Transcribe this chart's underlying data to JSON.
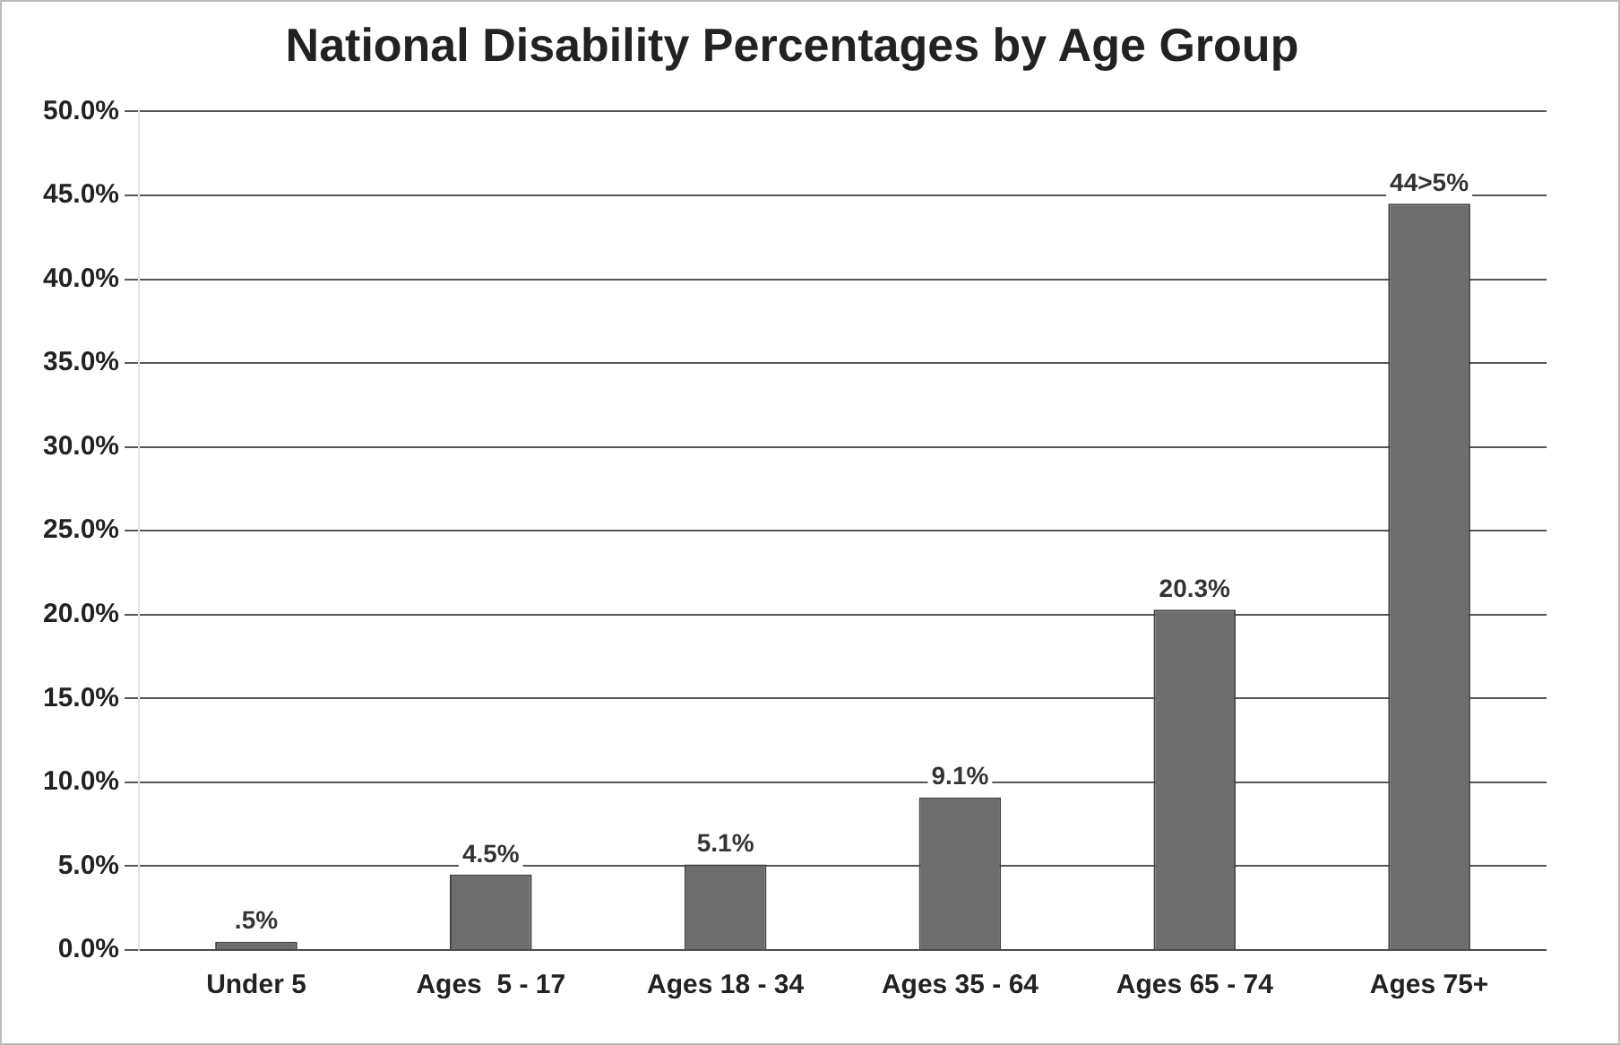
{
  "chart_data": {
    "type": "bar",
    "title": "National Disability Percentages by Age Group",
    "categories": [
      "Under 5",
      "Ages  5 - 17",
      "Ages 18 - 34",
      "Ages 35 - 64",
      "Ages 65 - 74",
      "Ages 75+"
    ],
    "values": [
      0.5,
      4.5,
      5.1,
      9.1,
      20.3,
      44.5
    ],
    "value_labels": [
      ".5%",
      "4.5%",
      "5.1%",
      "9.1%",
      "20.3%",
      "44>5%"
    ],
    "color": "#6e6e6e",
    "ylim": [
      0,
      50
    ],
    "yticks": [
      {
        "value": 0,
        "label": "0.0%"
      },
      {
        "value": 5,
        "label": "5.0%"
      },
      {
        "value": 10,
        "label": "10.0%"
      },
      {
        "value": 15,
        "label": "15.0%"
      },
      {
        "value": 20,
        "label": "20.0%"
      },
      {
        "value": 25,
        "label": "25.0%"
      },
      {
        "value": 30,
        "label": "30.0%"
      },
      {
        "value": 35,
        "label": "35.0%"
      },
      {
        "value": 40,
        "label": "40.0%"
      },
      {
        "value": 45,
        "label": "45.0%"
      },
      {
        "value": 50,
        "label": "50.0%"
      }
    ],
    "grid": "y",
    "legend": false
  }
}
